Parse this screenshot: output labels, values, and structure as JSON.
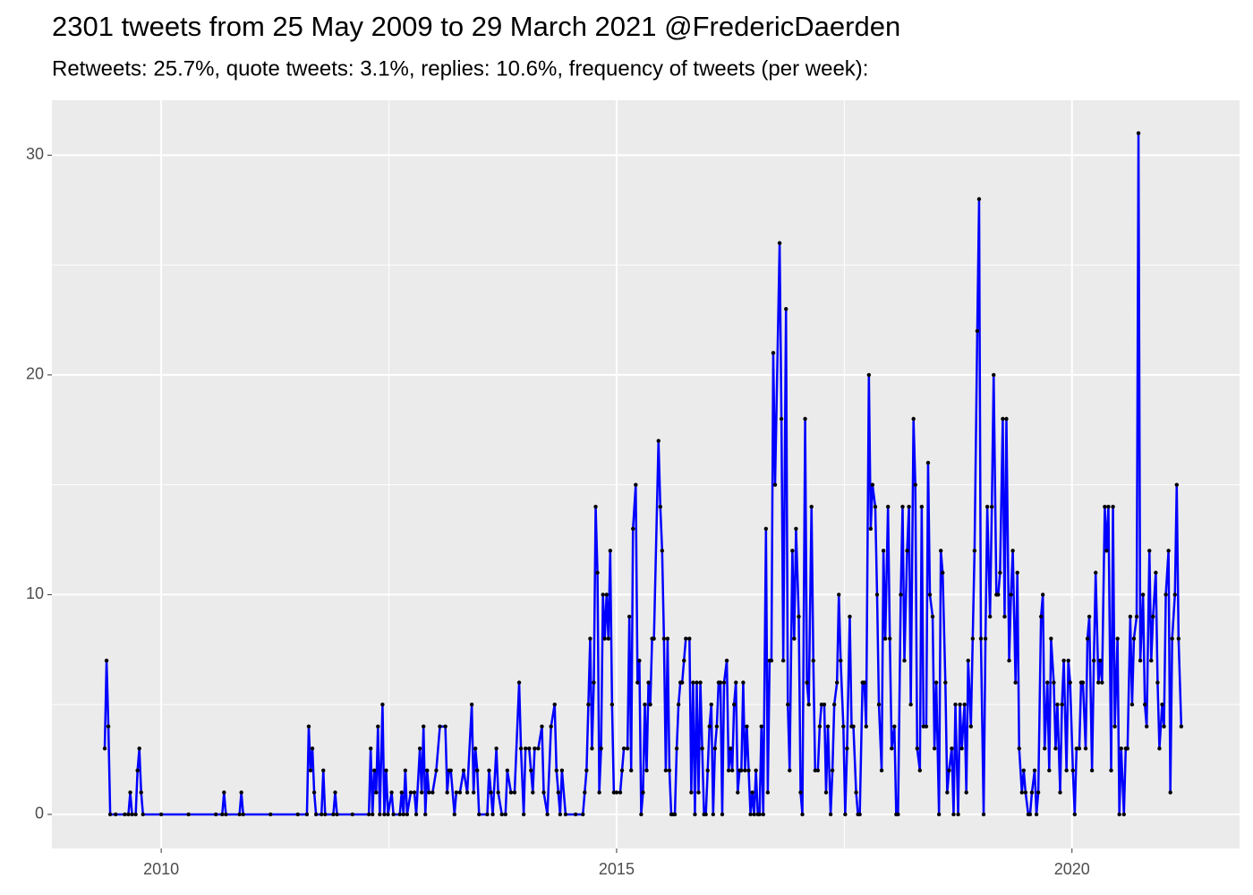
{
  "chart_data": {
    "type": "line",
    "title": "2301 tweets from 25 May 2009 to 29 March 2021 @FredericDaerden",
    "subtitle": "Retweets: 25.7%, quote tweets: 3.1%, replies: 10.6%, frequency of tweets (per week):",
    "color": "#0000ff",
    "point_color": "#000000",
    "background": "#ebebeb",
    "grid": true,
    "xlim": [
      2008.8,
      2021.84
    ],
    "xticks": [
      2010,
      2015,
      2020
    ],
    "x_minor_grid": [
      2012.5,
      2017.5
    ],
    "ylim": [
      -1.55,
      32.5
    ],
    "yticks": [
      0,
      10,
      20,
      30
    ],
    "y_minor_grid": [
      5,
      15,
      25
    ],
    "x": [
      2009.38,
      2009.4,
      2009.42,
      2009.44,
      2009.5,
      2009.6,
      2009.64,
      2009.66,
      2009.68,
      2009.72,
      2009.74,
      2009.76,
      2009.78,
      2009.8,
      2010,
      2010.3,
      2010.6,
      2010.67,
      2010.69,
      2010.71,
      2010.86,
      2010.88,
      2010.9,
      2011.2,
      2011.5,
      2011.6,
      2011.62,
      2011.64,
      2011.66,
      2011.68,
      2011.7,
      2011.76,
      2011.78,
      2011.8,
      2011.89,
      2011.91,
      2011.93,
      2012.1,
      2012.28,
      2012.3,
      2012.32,
      2012.34,
      2012.36,
      2012.38,
      2012.4,
      2012.43,
      2012.45,
      2012.47,
      2012.49,
      2012.53,
      2012.55,
      2012.62,
      2012.64,
      2012.66,
      2012.68,
      2012.7,
      2012.74,
      2012.78,
      2012.8,
      2012.84,
      2012.86,
      2012.88,
      2012.9,
      2012.92,
      2012.94,
      2012.98,
      2013.02,
      2013.06,
      2013.12,
      2013.14,
      2013.16,
      2013.18,
      2013.22,
      2013.24,
      2013.28,
      2013.32,
      2013.36,
      2013.41,
      2013.43,
      2013.45,
      2013.47,
      2013.49,
      2013.58,
      2013.6,
      2013.62,
      2013.64,
      2013.68,
      2013.7,
      2013.74,
      2013.78,
      2013.8,
      2013.84,
      2013.88,
      2013.93,
      2013.95,
      2013.98,
      2014.0,
      2014.04,
      2014.06,
      2014.08,
      2014.1,
      2014.14,
      2014.18,
      2014.2,
      2014.24,
      2014.28,
      2014.32,
      2014.34,
      2014.36,
      2014.38,
      2014.4,
      2014.44,
      2014.55,
      2014.63,
      2014.65,
      2014.67,
      2014.69,
      2014.71,
      2014.73,
      2014.75,
      2014.77,
      2014.79,
      2014.81,
      2014.83,
      2014.85,
      2014.87,
      2014.89,
      2014.91,
      2014.93,
      2014.95,
      2014.97,
      2015.0,
      2015.04,
      2015.06,
      2015.08,
      2015.12,
      2015.14,
      2015.16,
      2015.18,
      2015.21,
      2015.23,
      2015.25,
      2015.27,
      2015.29,
      2015.31,
      2015.33,
      2015.35,
      2015.37,
      2015.39,
      2015.41,
      2015.46,
      2015.48,
      2015.5,
      2015.52,
      2015.54,
      2015.56,
      2015.58,
      2015.6,
      2015.62,
      2015.64,
      2015.66,
      2015.68,
      2015.7,
      2015.72,
      2015.74,
      2015.76,
      2015.8,
      2015.82,
      2015.84,
      2015.86,
      2015.88,
      2015.9,
      2015.92,
      2015.94,
      2015.96,
      2015.98,
      2016.0,
      2016.02,
      2016.04,
      2016.06,
      2016.08,
      2016.1,
      2016.12,
      2016.14,
      2016.16,
      2016.18,
      2016.21,
      2016.23,
      2016.25,
      2016.27,
      2016.29,
      2016.31,
      2016.33,
      2016.35,
      2016.37,
      2016.39,
      2016.41,
      2016.43,
      2016.45,
      2016.47,
      2016.49,
      2016.51,
      2016.53,
      2016.55,
      2016.57,
      2016.59,
      2016.61,
      2016.64,
      2016.66,
      2016.68,
      2016.7,
      2016.72,
      2016.74,
      2016.79,
      2016.81,
      2016.83,
      2016.86,
      2016.88,
      2016.9,
      2016.93,
      2016.95,
      2016.97,
      2017.0,
      2017.02,
      2017.04,
      2017.07,
      2017.09,
      2017.11,
      2017.14,
      2017.16,
      2017.18,
      2017.21,
      2017.23,
      2017.25,
      2017.28,
      2017.3,
      2017.32,
      2017.35,
      2017.37,
      2017.39,
      2017.42,
      2017.44,
      2017.46,
      2017.49,
      2017.51,
      2017.53,
      2017.56,
      2017.58,
      2017.6,
      2017.63,
      2017.65,
      2017.67,
      2017.7,
      2017.72,
      2017.74,
      2017.77,
      2017.79,
      2017.81,
      2017.84,
      2017.86,
      2017.88,
      2017.91,
      2017.93,
      2017.95,
      2017.98,
      2018.0,
      2018.02,
      2018.05,
      2018.07,
      2018.09,
      2018.12,
      2018.14,
      2018.16,
      2018.19,
      2018.21,
      2018.23,
      2018.26,
      2018.28,
      2018.3,
      2018.33,
      2018.35,
      2018.37,
      2018.4,
      2018.42,
      2018.44,
      2018.47,
      2018.49,
      2018.51,
      2018.54,
      2018.56,
      2018.58,
      2018.61,
      2018.63,
      2018.65,
      2018.68,
      2018.7,
      2018.72,
      2018.75,
      2018.77,
      2018.79,
      2018.82,
      2018.84,
      2018.86,
      2018.89,
      2018.91,
      2018.93,
      2018.96,
      2018.98,
      2019.0,
      2019.03,
      2019.05,
      2019.07,
      2019.1,
      2019.12,
      2019.14,
      2019.17,
      2019.19,
      2019.21,
      2019.24,
      2019.26,
      2019.28,
      2019.31,
      2019.33,
      2019.35,
      2019.38,
      2019.4,
      2019.42,
      2019.45,
      2019.47,
      2019.49,
      2019.52,
      2019.54,
      2019.56,
      2019.59,
      2019.61,
      2019.63,
      2019.66,
      2019.68,
      2019.7,
      2019.73,
      2019.75,
      2019.77,
      2019.8,
      2019.82,
      2019.84,
      2019.87,
      2019.89,
      2019.91,
      2019.94,
      2019.96,
      2019.98,
      2020.01,
      2020.03,
      2020.05,
      2020.08,
      2020.1,
      2020.12,
      2020.15,
      2020.17,
      2020.19,
      2020.22,
      2020.24,
      2020.26,
      2020.29,
      2020.31,
      2020.33,
      2020.36,
      2020.38,
      2020.4,
      2020.43,
      2020.45,
      2020.47,
      2020.5,
      2020.52,
      2020.54,
      2020.57,
      2020.59,
      2020.61,
      2020.64,
      2020.66,
      2020.68,
      2020.71,
      2020.73,
      2020.75,
      2020.78,
      2020.8,
      2020.82,
      2020.85,
      2020.87,
      2020.89,
      2020.92,
      2020.94,
      2020.96,
      2020.99,
      2021.01,
      2021.03,
      2021.06,
      2021.08,
      2021.1,
      2021.13,
      2021.15,
      2021.17,
      2021.2
    ],
    "values": [
      3,
      7,
      4,
      0,
      0,
      0,
      0,
      1,
      0,
      0,
      2,
      3,
      1,
      0,
      0,
      0,
      0,
      0,
      1,
      0,
      0,
      1,
      0,
      0,
      0,
      0,
      4,
      2,
      3,
      1,
      0,
      0,
      2,
      0,
      0,
      1,
      0,
      0,
      0,
      3,
      0,
      2,
      1,
      4,
      0,
      5,
      0,
      2,
      0,
      1,
      0,
      0,
      1,
      0,
      2,
      0,
      1,
      1,
      0,
      3,
      1,
      4,
      0,
      2,
      1,
      1,
      2,
      4,
      4,
      1,
      2,
      2,
      0,
      1,
      1,
      2,
      1,
      5,
      1,
      3,
      2,
      0,
      0,
      2,
      1,
      0,
      3,
      1,
      0,
      0,
      2,
      1,
      1,
      6,
      3,
      0,
      3,
      3,
      2,
      1,
      3,
      3,
      4,
      1,
      0,
      4,
      5,
      2,
      1,
      0,
      2,
      0,
      0,
      0,
      1,
      2,
      5,
      8,
      3,
      6,
      14,
      11,
      1,
      3,
      10,
      8,
      10,
      8,
      12,
      5,
      1,
      1,
      1,
      2,
      3,
      3,
      9,
      2,
      13,
      15,
      6,
      7,
      0,
      1,
      5,
      2,
      6,
      5,
      8,
      8,
      17,
      14,
      12,
      8,
      2,
      8,
      2,
      0,
      0,
      0,
      3,
      5,
      6,
      6,
      7,
      8,
      8,
      1,
      6,
      0,
      6,
      1,
      6,
      3,
      0,
      0,
      2,
      4,
      5,
      0,
      3,
      4,
      6,
      6,
      0,
      6,
      7,
      2,
      3,
      2,
      5,
      6,
      1,
      2,
      2,
      6,
      2,
      4,
      2,
      0,
      1,
      0,
      2,
      0,
      0,
      4,
      0,
      13,
      1,
      7,
      7,
      21,
      15,
      26,
      18,
      7,
      23,
      5,
      2,
      12,
      8,
      13,
      9,
      1,
      0,
      18,
      6,
      5,
      14,
      7,
      2,
      2,
      4,
      5,
      5,
      1,
      4,
      0,
      2,
      5,
      6,
      10,
      7,
      4,
      0,
      3,
      9,
      4,
      4,
      1,
      0,
      0,
      6,
      6,
      4,
      20,
      13,
      15,
      14,
      10,
      5,
      2,
      12,
      8,
      14,
      8,
      3,
      4,
      0,
      0,
      10,
      14,
      7,
      12,
      14,
      5,
      18,
      15,
      3,
      2,
      14,
      4,
      4,
      16,
      10,
      9,
      3,
      6,
      0,
      12,
      11,
      6,
      1,
      2,
      3,
      0,
      5,
      0,
      5,
      3,
      5,
      1,
      7,
      4,
      8,
      12,
      22,
      28,
      8,
      0,
      8,
      14,
      9,
      14,
      20,
      10,
      10,
      11,
      18,
      9,
      18,
      7,
      10,
      12,
      6,
      11,
      3,
      1,
      2,
      1,
      0,
      0,
      1,
      2,
      0,
      1,
      9,
      10,
      3,
      6,
      2,
      8,
      6,
      3,
      5,
      1,
      5,
      7,
      2,
      7,
      6,
      2,
      0,
      3,
      3,
      6,
      6,
      3,
      8,
      9,
      2,
      7,
      11,
      6,
      7,
      6,
      14,
      12,
      14,
      2,
      14,
      4,
      8,
      0,
      3,
      0,
      3,
      3,
      9,
      5,
      8,
      9,
      31,
      7,
      10,
      5,
      4,
      12,
      7,
      9,
      11,
      6,
      3,
      5,
      4,
      10,
      12,
      1,
      8,
      10,
      15,
      8,
      4
    ]
  }
}
